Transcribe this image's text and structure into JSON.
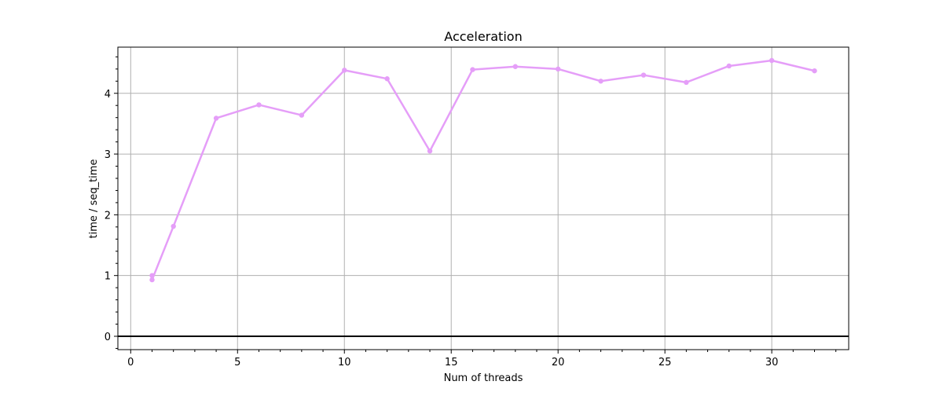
{
  "chart_data": {
    "type": "line",
    "title": "Acceleration",
    "xlabel": "Num of threads",
    "ylabel": "time / seq_time",
    "xlim": [
      -0.6,
      33.6
    ],
    "ylim": [
      -0.22,
      4.76
    ],
    "x_ticks": [
      0,
      5,
      10,
      15,
      20,
      25,
      30
    ],
    "y_ticks": [
      0,
      1,
      2,
      3,
      4
    ],
    "x_tick_labels": [
      "0",
      "5",
      "10",
      "15",
      "20",
      "25",
      "30"
    ],
    "y_tick_labels": [
      "0",
      "1",
      "2",
      "3",
      "4"
    ],
    "grid": true,
    "reference_line_y": 0,
    "series": [
      {
        "color": "#e59ef8",
        "x": [
          1,
          1,
          2,
          4,
          6,
          8,
          10,
          12,
          14,
          16,
          18,
          20,
          22,
          24,
          26,
          28,
          30,
          32
        ],
        "y": [
          1.0,
          0.93,
          1.81,
          3.59,
          3.81,
          3.64,
          4.38,
          4.24,
          3.05,
          4.39,
          4.44,
          4.4,
          4.2,
          4.3,
          4.18,
          4.45,
          4.54,
          4.37
        ]
      }
    ]
  }
}
